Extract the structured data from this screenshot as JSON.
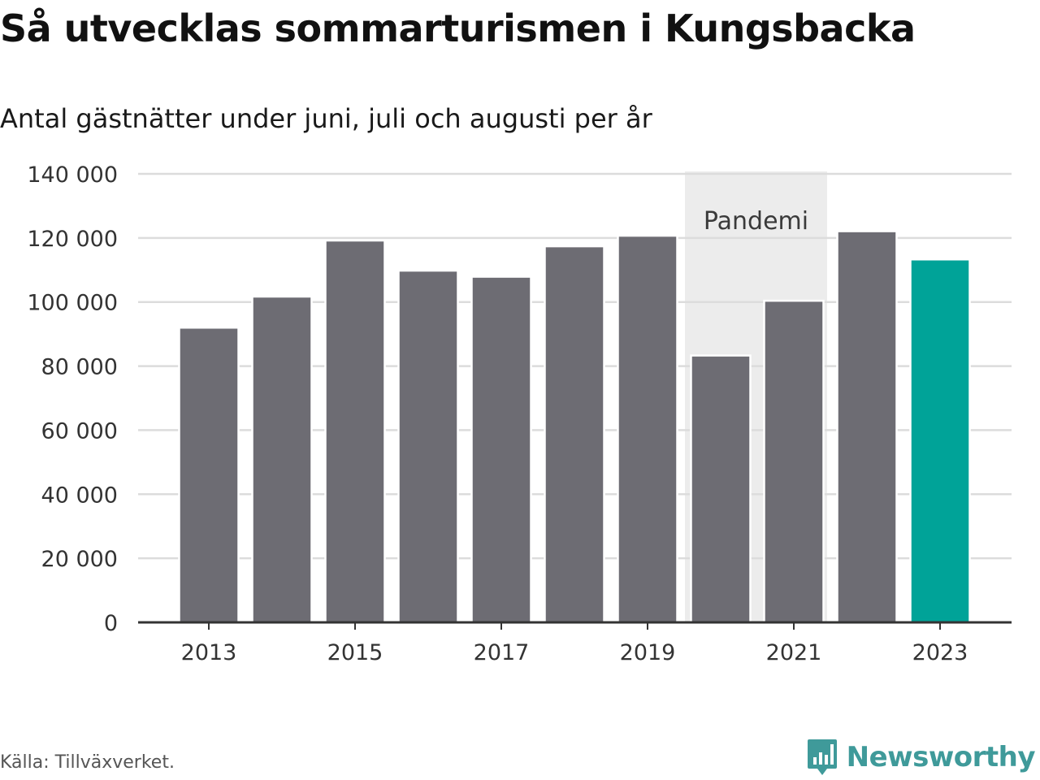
{
  "title": "Så utvecklas sommarturismen i Kungsbacka",
  "subtitle": "Antal gästnätter under juni, juli och augusti per år",
  "source": "Källa: Tillväxverket.",
  "brand": {
    "name": "Newsworthy"
  },
  "colors": {
    "bar": "#6d6c73",
    "highlight": "#00a398",
    "band": "#ececec",
    "grid": "#dcdcdc",
    "axis": "#333333",
    "brand": "#3f9a9a"
  },
  "chart_data": {
    "type": "bar",
    "categories": [
      "2013",
      "2014",
      "2015",
      "2016",
      "2017",
      "2018",
      "2019",
      "2020",
      "2021",
      "2022",
      "2023"
    ],
    "values": [
      92000,
      101700,
      119200,
      109800,
      107900,
      117400,
      120700,
      83300,
      100400,
      122100,
      113300
    ],
    "highlight_category": "2023",
    "xtick_labels": [
      "2013",
      "2015",
      "2017",
      "2019",
      "2021",
      "2023"
    ],
    "ylim": [
      0,
      140000
    ],
    "yticks": [
      0,
      20000,
      40000,
      60000,
      80000,
      100000,
      120000,
      140000
    ],
    "ytick_labels": [
      "0",
      "20 000",
      "40 000",
      "60 000",
      "80 000",
      "100 000",
      "120 000",
      "140 000"
    ],
    "grid": true,
    "annotation": {
      "label": "Pandemi",
      "from": "2020",
      "to": "2021"
    }
  }
}
